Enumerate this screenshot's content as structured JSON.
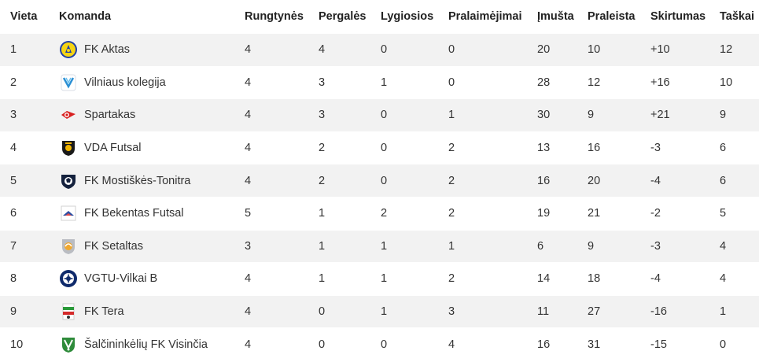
{
  "headers": {
    "position": "Vieta",
    "team": "Komanda",
    "played": "Rungtynės",
    "wins": "Pergalės",
    "draws": "Lygiosios",
    "losses": "Pralaimėjimai",
    "goals_for": "Įmušta",
    "goals_against": "Praleista",
    "difference": "Skirtumas",
    "points": "Taškai"
  },
  "rows": [
    {
      "position": "1",
      "team": "FK Aktas",
      "logo": "aktas-crest-icon",
      "played": "4",
      "wins": "4",
      "draws": "0",
      "losses": "0",
      "goals_for": "20",
      "goals_against": "10",
      "difference": "+10",
      "points": "12"
    },
    {
      "position": "2",
      "team": "Vilniaus kolegija",
      "logo": "kolegija-crest-icon",
      "played": "4",
      "wins": "3",
      "draws": "1",
      "losses": "0",
      "goals_for": "28",
      "goals_against": "12",
      "difference": "+16",
      "points": "10"
    },
    {
      "position": "3",
      "team": "Spartakas",
      "logo": "spartakas-crest-icon",
      "played": "4",
      "wins": "3",
      "draws": "0",
      "losses": "1",
      "goals_for": "30",
      "goals_against": "9",
      "difference": "+21",
      "points": "9"
    },
    {
      "position": "4",
      "team": "VDA Futsal",
      "logo": "vda-crest-icon",
      "played": "4",
      "wins": "2",
      "draws": "0",
      "losses": "2",
      "goals_for": "13",
      "goals_against": "16",
      "difference": "-3",
      "points": "6"
    },
    {
      "position": "5",
      "team": "FK Mostiškės-Tonitra",
      "logo": "mostiskes-crest-icon",
      "played": "4",
      "wins": "2",
      "draws": "0",
      "losses": "2",
      "goals_for": "16",
      "goals_against": "20",
      "difference": "-4",
      "points": "6"
    },
    {
      "position": "6",
      "team": "FK Bekentas Futsal",
      "logo": "bekentas-crest-icon",
      "played": "5",
      "wins": "1",
      "draws": "2",
      "losses": "2",
      "goals_for": "19",
      "goals_against": "21",
      "difference": "-2",
      "points": "5"
    },
    {
      "position": "7",
      "team": "FK Setaltas",
      "logo": "setaltas-crest-icon",
      "played": "3",
      "wins": "1",
      "draws": "1",
      "losses": "1",
      "goals_for": "6",
      "goals_against": "9",
      "difference": "-3",
      "points": "4"
    },
    {
      "position": "8",
      "team": "VGTU-Vilkai B",
      "logo": "vgtu-crest-icon",
      "played": "4",
      "wins": "1",
      "draws": "1",
      "losses": "2",
      "goals_for": "14",
      "goals_against": "18",
      "difference": "-4",
      "points": "4"
    },
    {
      "position": "9",
      "team": "FK Tera",
      "logo": "tera-crest-icon",
      "played": "4",
      "wins": "0",
      "draws": "1",
      "losses": "3",
      "goals_for": "11",
      "goals_against": "27",
      "difference": "-16",
      "points": "1"
    },
    {
      "position": "10",
      "team": "Šalčininkėlių FK Visinčia",
      "logo": "visincia-crest-icon",
      "played": "4",
      "wins": "0",
      "draws": "0",
      "losses": "4",
      "goals_for": "16",
      "goals_against": "31",
      "difference": "-15",
      "points": "0"
    }
  ],
  "colors": {
    "row_stripe": "#f2f2f2",
    "row_plain": "#ffffff",
    "text": "#333333"
  }
}
